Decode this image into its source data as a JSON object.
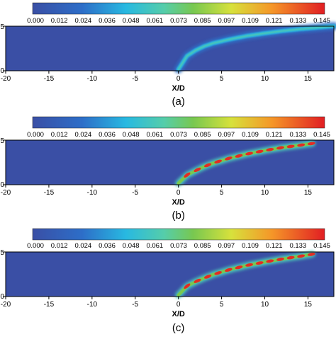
{
  "chart_data": [
    {
      "type": "heatmap",
      "caption": "(a)",
      "xlabel": "X/D",
      "xlim": [
        -20,
        18
      ],
      "ylim": [
        0,
        6
      ],
      "x_ticks": [
        "-20",
        "-15",
        "-10",
        "-5",
        "0",
        "5",
        "10",
        "15"
      ],
      "colorbar": {
        "ticks": [
          "0.000",
          "0.012",
          "0.024",
          "0.036",
          "0.048",
          "0.061",
          "0.073",
          "0.085",
          "0.097",
          "0.109",
          "0.121",
          "0.133",
          "0.145"
        ],
        "range": [
          0.0,
          0.145
        ]
      },
      "trajectory": {
        "x": [
          0,
          1,
          2,
          3,
          4,
          6,
          8,
          10,
          12,
          14,
          16,
          18
        ],
        "y": [
          0.2,
          2.0,
          2.75,
          3.3,
          3.7,
          4.25,
          4.7,
          5.05,
          5.35,
          5.6,
          5.8,
          6.0
        ],
        "peak_value": 0.073,
        "style": "diffuse"
      }
    },
    {
      "type": "heatmap",
      "caption": "(b)",
      "xlabel": "X/D",
      "xlim": [
        -20,
        18
      ],
      "ylim": [
        0,
        6
      ],
      "x_ticks": [
        "-20",
        "-15",
        "-10",
        "-5",
        "0",
        "5",
        "10",
        "15"
      ],
      "colorbar": {
        "ticks": [
          "0.000",
          "0.012",
          "0.024",
          "0.036",
          "0.048",
          "0.061",
          "0.073",
          "0.085",
          "0.097",
          "0.109",
          "0.121",
          "0.133",
          "0.145"
        ],
        "range": [
          0.0,
          0.145
        ]
      },
      "trajectory": {
        "x": [
          0,
          1,
          2,
          3,
          4,
          6,
          8,
          10,
          12,
          14,
          15.5
        ],
        "y": [
          0.2,
          1.3,
          1.9,
          2.45,
          2.9,
          3.6,
          4.15,
          4.6,
          5.0,
          5.3,
          5.55
        ],
        "peak_value": 0.145,
        "style": "blobs"
      }
    },
    {
      "type": "heatmap",
      "caption": "(c)",
      "xlabel": "X/D",
      "xlim": [
        -20,
        18
      ],
      "ylim": [
        0,
        6
      ],
      "x_ticks": [
        "-20",
        "-15",
        "-10",
        "-5",
        "0",
        "5",
        "10",
        "15"
      ],
      "colorbar": {
        "ticks": [
          "0.000",
          "0.012",
          "0.024",
          "0.036",
          "0.048",
          "0.061",
          "0.073",
          "0.085",
          "0.097",
          "0.109",
          "0.121",
          "0.133",
          "0.145"
        ],
        "range": [
          0.0,
          0.145
        ]
      },
      "trajectory": {
        "x": [
          0,
          1,
          2,
          3,
          4,
          6,
          8,
          10,
          12,
          14,
          15.5
        ],
        "y": [
          0.2,
          1.4,
          2.0,
          2.5,
          2.95,
          3.65,
          4.2,
          4.65,
          5.05,
          5.4,
          5.7
        ],
        "peak_value": 0.145,
        "style": "blobs"
      }
    }
  ]
}
